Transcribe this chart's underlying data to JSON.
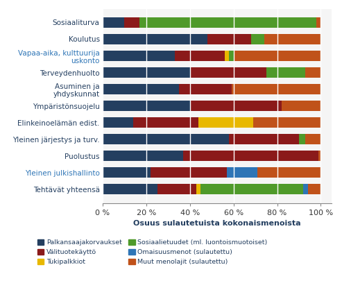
{
  "categories": [
    "Sosiaaliturva",
    "Koulutus",
    "Vapaa-aika, kulttuurija\nuskonto",
    "Terveydenhuolto",
    "Asuminen ja\nyhdyskunnat",
    "Ympäristönsuojelu",
    "Elinkeinoelämän edist.",
    "Yleinen järjestys ja turv.",
    "Puolustus",
    "Yleinen julkishallinto",
    "Tehtävät yhteensä"
  ],
  "series": {
    "Palkansaajakorvaukset": [
      10,
      48,
      33,
      40,
      35,
      40,
      14,
      58,
      37,
      22,
      25
    ],
    "Välituotekäyttö": [
      7,
      20,
      23,
      35,
      24,
      42,
      30,
      32,
      62,
      35,
      18
    ],
    "Tukipalkkiot": [
      0,
      0,
      2,
      0,
      0,
      0,
      25,
      0,
      0,
      0,
      2
    ],
    "Sosiaalietuudet": [
      81,
      6,
      2,
      18,
      0,
      0,
      0,
      3,
      0,
      0,
      47
    ],
    "Omaisuusmenot": [
      0,
      0,
      0,
      0,
      0,
      0,
      0,
      0,
      0,
      14,
      2
    ],
    "Muut menolajit": [
      2,
      26,
      40,
      7,
      41,
      18,
      31,
      7,
      1,
      29,
      6
    ]
  },
  "colors": {
    "Palkansaajakorvaukset": "#243F60",
    "Välituotekäyttö": "#8B1A1A",
    "Tukipalkkiot": "#E8B800",
    "Sosiaalietuudet": "#4F9A2A",
    "Omaisuusmenot": "#2E75B6",
    "Muut menolajit": "#C0521A"
  },
  "legend_entries": [
    [
      "Palkansaajakorvaukset",
      "#243F60"
    ],
    [
      "Välituotekäyttö",
      "#8B1A1A"
    ],
    [
      "Tukipalkkiot",
      "#E8B800"
    ],
    [
      "Sosiaalietuudet (ml. luontoismuotoiset)",
      "#4F9A2A"
    ],
    [
      "Omaisuusmenot (sulautettu)",
      "#2E75B6"
    ],
    [
      "Muut menolajit (sulautettu)",
      "#C0521A"
    ]
  ],
  "xlabel": "Osuus sulautetuista kokonaismenoista",
  "xlim": [
    0,
    105
  ],
  "xticks": [
    0,
    20,
    40,
    60,
    80,
    100
  ],
  "xticklabels": [
    "0 %",
    "20 %",
    "40 %",
    "60 %",
    "80 %",
    "100 %"
  ],
  "figsize": [
    4.93,
    4.18
  ],
  "dpi": 100,
  "bar_height": 0.6,
  "plot_bgcolor": "#E8E8E8"
}
